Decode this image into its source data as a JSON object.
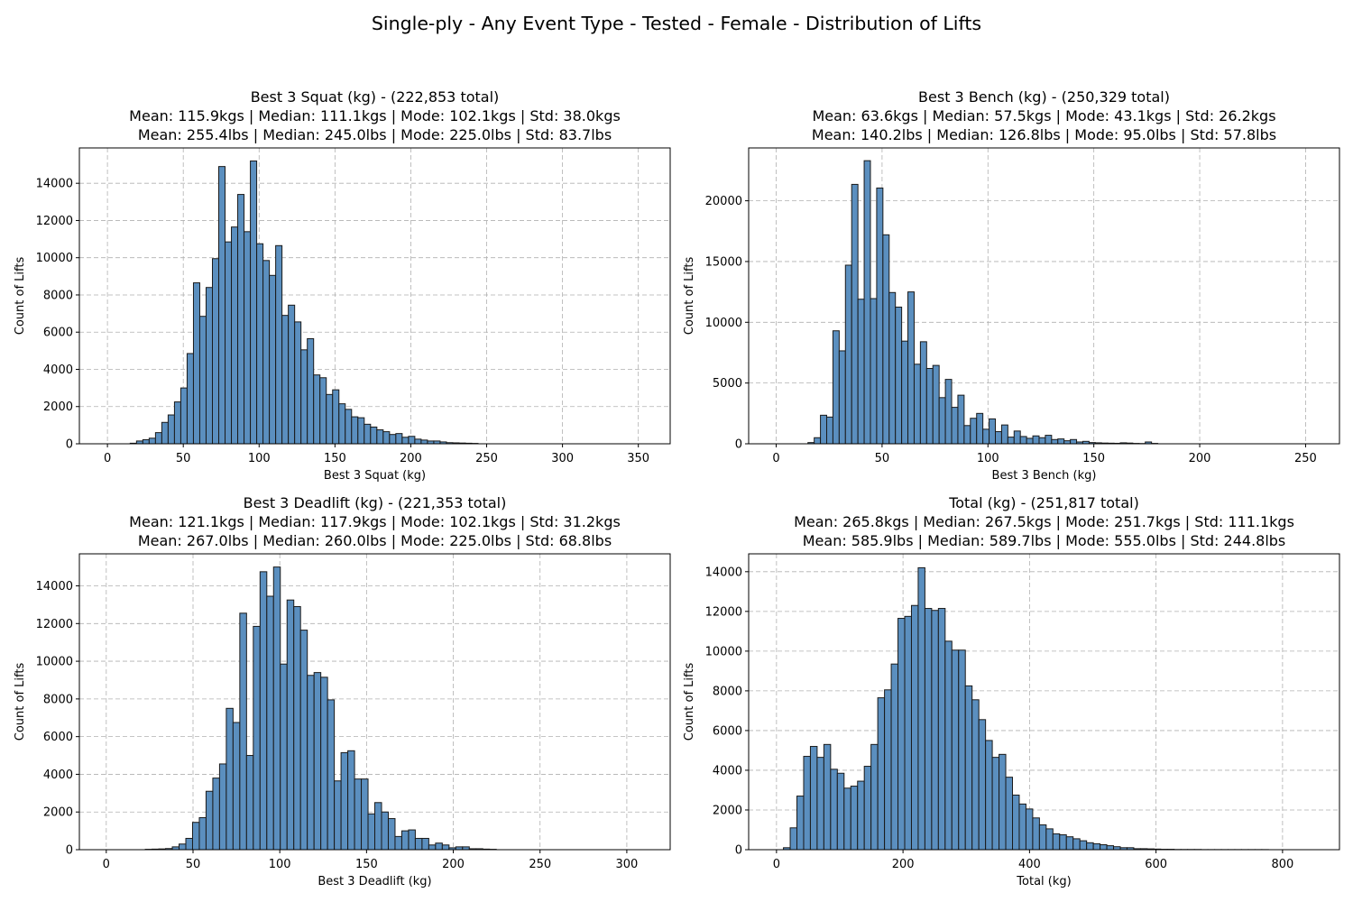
{
  "figure_title": "Single-ply - Any Event Type - Tested - Female - Distribution of Lifts",
  "colors": {
    "bar_fill": "#5b8fbf",
    "bar_stroke": "#1a1a1a",
    "grid": "#b0b0b0"
  },
  "chart_data": [
    {
      "type": "bar",
      "title_lines": [
        "Best 3 Squat (kg) - (222,853 total)",
        "Mean: 115.9kgs | Median: 111.1kgs | Mode: 102.1kgs | Std: 38.0kgs",
        "Mean: 255.4lbs | Median: 245.0lbs | Mode: 225.0lbs | Std: 83.7lbs"
      ],
      "xlabel": "Best 3 Squat (kg)",
      "ylabel": "Count of Lifts",
      "xlim": [
        -18.5,
        371
      ],
      "ylim": [
        0,
        15900
      ],
      "xticks": [
        0,
        50,
        100,
        150,
        200,
        250,
        300,
        350
      ],
      "yticks": [
        0,
        2000,
        4000,
        6000,
        8000,
        10000,
        12000,
        14000
      ],
      "grid": true,
      "bin_start": 15,
      "bin_width": 4.17,
      "values": [
        30,
        150,
        220,
        300,
        600,
        1150,
        1550,
        2250,
        3000,
        4850,
        8650,
        6850,
        8400,
        9950,
        14900,
        10850,
        11650,
        13400,
        11400,
        15200,
        10750,
        9850,
        9050,
        10650,
        6900,
        7450,
        6550,
        5050,
        5650,
        3700,
        3550,
        2650,
        2900,
        2150,
        1850,
        1450,
        1400,
        1050,
        900,
        750,
        650,
        500,
        550,
        350,
        400,
        250,
        200,
        150,
        150,
        100,
        60,
        50,
        40,
        30,
        20
      ]
    },
    {
      "type": "bar",
      "title_lines": [
        "Best 3 Bench (kg) - (250,329 total)",
        "Mean: 63.6kgs | Median: 57.5kgs | Mode: 43.1kgs | Std: 26.2kgs",
        "Mean: 140.2lbs | Median: 126.8lbs | Mode: 95.0lbs | Std: 57.8lbs"
      ],
      "xlabel": "Best 3 Bench (kg)",
      "ylabel": "Count of Lifts",
      "xlim": [
        -13,
        266
      ],
      "ylim": [
        0,
        24350
      ],
      "xticks": [
        0,
        50,
        100,
        150,
        200,
        250
      ],
      "yticks": [
        0,
        5000,
        10000,
        15000,
        20000
      ],
      "grid": true,
      "bin_start": 15,
      "bin_width": 2.95,
      "values": [
        100,
        500,
        2350,
        2200,
        9300,
        7650,
        14700,
        21350,
        11900,
        23300,
        11950,
        21050,
        17200,
        12450,
        11250,
        8450,
        12500,
        6550,
        8400,
        6200,
        6450,
        3800,
        5300,
        3000,
        4000,
        1500,
        2100,
        2500,
        1200,
        2050,
        1000,
        1550,
        550,
        1050,
        600,
        450,
        650,
        500,
        700,
        350,
        400,
        250,
        350,
        150,
        200,
        100,
        80,
        60,
        50,
        40,
        80,
        60,
        30,
        20,
        150,
        30
      ]
    },
    {
      "type": "bar",
      "title_lines": [
        "Best 3 Deadlift (kg) - (221,353 total)",
        "Mean: 121.1kgs | Median: 117.9kgs | Mode: 102.1kgs | Std: 31.2kgs",
        "Mean: 267.0lbs | Median: 260.0lbs | Mode: 225.0lbs | Std: 68.8lbs"
      ],
      "xlabel": "Best 3 Deadlift (kg)",
      "ylabel": "Count of Lifts",
      "xlim": [
        -15.5,
        325
      ],
      "ylim": [
        0,
        15700
      ],
      "xticks": [
        0,
        50,
        100,
        150,
        200,
        250,
        300
      ],
      "yticks": [
        0,
        2000,
        4000,
        6000,
        8000,
        10000,
        12000,
        14000
      ],
      "grid": true,
      "bin_start": 22.5,
      "bin_width": 3.89,
      "values": [
        20,
        30,
        40,
        60,
        150,
        300,
        600,
        1450,
        1700,
        3100,
        3800,
        4550,
        7500,
        6750,
        12550,
        5000,
        11850,
        14750,
        13450,
        15000,
        9850,
        13250,
        12900,
        11650,
        9250,
        9400,
        9150,
        7950,
        3650,
        5150,
        5250,
        3750,
        3750,
        1900,
        2500,
        2000,
        1650,
        700,
        1000,
        1050,
        600,
        600,
        250,
        350,
        250,
        100,
        150,
        150,
        50,
        50,
        30,
        20
      ]
    },
    {
      "type": "bar",
      "title_lines": [
        "Total (kg) - (251,817 total)",
        "Mean: 265.8kgs | Median: 267.5kgs | Mode: 251.7kgs | Std: 111.1kgs",
        "Mean: 585.9lbs | Median: 589.7lbs | Mode: 555.0lbs | Std: 244.8lbs"
      ],
      "xlabel": "Total (kg)",
      "ylabel": "Count of Lifts",
      "xlim": [
        -44,
        890
      ],
      "ylim": [
        0,
        14900
      ],
      "xticks": [
        0,
        200,
        400,
        600,
        800
      ],
      "yticks": [
        0,
        2000,
        4000,
        6000,
        8000,
        10000,
        12000,
        14000
      ],
      "grid": true,
      "bin_start": 11,
      "bin_width": 10.65,
      "values": [
        100,
        1100,
        2700,
        4700,
        5200,
        4650,
        5300,
        4050,
        3850,
        3100,
        3200,
        3450,
        4200,
        5300,
        7650,
        8050,
        9350,
        11650,
        11750,
        12300,
        14200,
        12150,
        12050,
        12150,
        10500,
        10050,
        10050,
        8250,
        7550,
        6550,
        5500,
        4650,
        4800,
        3650,
        2750,
        2300,
        2050,
        1600,
        1250,
        1050,
        800,
        750,
        650,
        550,
        450,
        350,
        300,
        250,
        200,
        150,
        100,
        100,
        50,
        50,
        40,
        30,
        20,
        20,
        10,
        10,
        10,
        10,
        5,
        5,
        5,
        5,
        5,
        5,
        5,
        5,
        5,
        5
      ]
    }
  ]
}
